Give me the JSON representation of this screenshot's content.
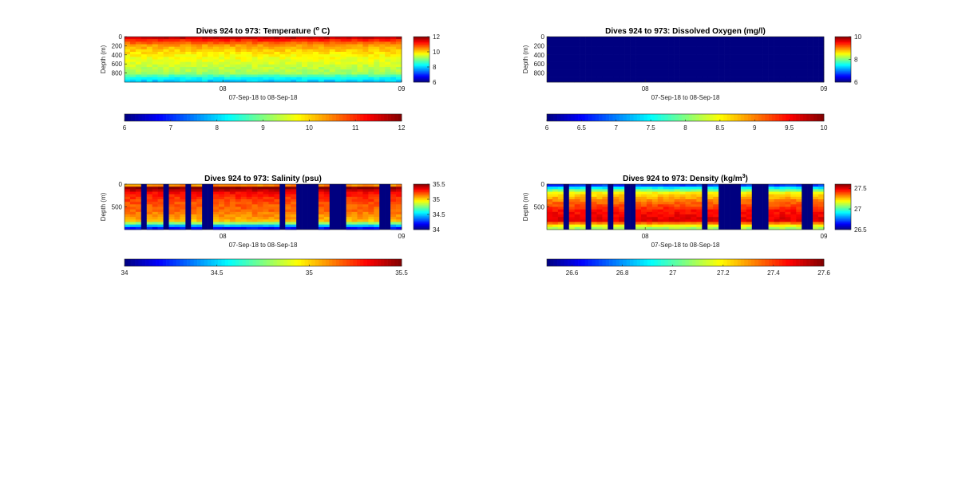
{
  "colormap": "jet",
  "chart_data": [
    {
      "type": "heatmap",
      "title_prefix": "Dives 924 to 973: Temperature (",
      "title_super": "o",
      "title_suffix": " C)",
      "xlabel": "07-Sep-18 to 08-Sep-18",
      "ylabel": "Depth (m)",
      "x_ticks": [
        "08",
        "09"
      ],
      "y_ticks": [
        "0",
        "200",
        "400",
        "600",
        "800"
      ],
      "y_tick_values": [
        0,
        200,
        400,
        600,
        800
      ],
      "ylim": [
        0,
        1000
      ],
      "n_dives": 50,
      "clim": [
        6,
        12
      ],
      "side_colorbar_ticks": [
        "12",
        "10",
        "8",
        "6"
      ],
      "side_colorbar_values": [
        12,
        10,
        8,
        6
      ],
      "bottom_colorbar_ticks": [
        "6",
        "7",
        "8",
        "9",
        "10",
        "11",
        "12"
      ],
      "bottom_colorbar_values": [
        6,
        7,
        8,
        9,
        10,
        11,
        12
      ],
      "profile": {
        "depth_m": [
          0,
          100,
          200,
          400,
          600,
          800,
          950
        ],
        "value": [
          11.8,
          10.9,
          10.3,
          9.8,
          9.5,
          9.2,
          8.0
        ]
      },
      "no_data_dives": []
    },
    {
      "type": "heatmap",
      "title_prefix": "Dives 924 to 973: Dissolved Oxygen (mg/l)",
      "title_super": "",
      "title_suffix": "",
      "xlabel": "07-Sep-18 to 08-Sep-18",
      "ylabel": "Depth (m)",
      "x_ticks": [
        "08",
        "09"
      ],
      "y_ticks": [
        "0",
        "200",
        "400",
        "600",
        "800"
      ],
      "y_tick_values": [
        0,
        200,
        400,
        600,
        800
      ],
      "ylim": [
        0,
        1000
      ],
      "n_dives": 50,
      "clim": [
        6,
        10
      ],
      "side_colorbar_ticks": [
        "10",
        "8",
        "6"
      ],
      "side_colorbar_values": [
        10,
        8,
        6
      ],
      "bottom_colorbar_ticks": [
        "6",
        "6.5",
        "7",
        "7.5",
        "8",
        "8.5",
        "9",
        "9.5",
        "10"
      ],
      "bottom_colorbar_values": [
        6,
        6.5,
        7,
        7.5,
        8,
        8.5,
        9,
        9.5,
        10
      ],
      "profile": {
        "depth_m": [
          0,
          1000
        ],
        "value": [
          6,
          6
        ]
      },
      "no_data_dives": []
    },
    {
      "type": "heatmap",
      "title_prefix": "Dives 924 to 973: Salinity (psu)",
      "title_super": "",
      "title_suffix": "",
      "xlabel": "07-Sep-18 to 08-Sep-18",
      "ylabel": "Depth (m)",
      "x_ticks": [
        "08",
        "09"
      ],
      "y_ticks": [
        "0",
        "500"
      ],
      "y_tick_values": [
        0,
        500
      ],
      "ylim": [
        0,
        1000
      ],
      "n_dives": 50,
      "clim": [
        34,
        35.5
      ],
      "side_colorbar_ticks": [
        "35.5",
        "35",
        "34.5",
        "34"
      ],
      "side_colorbar_values": [
        35.5,
        35,
        34.5,
        34
      ],
      "bottom_colorbar_ticks": [
        "34",
        "34.5",
        "35",
        "35.5"
      ],
      "bottom_colorbar_values": [
        34,
        34.5,
        35,
        35.5
      ],
      "profile": {
        "depth_m": [
          0,
          80,
          200,
          400,
          600,
          800,
          900,
          950
        ],
        "value": [
          34.9,
          35.5,
          35.3,
          35.2,
          35.15,
          35.05,
          34.6,
          34.2
        ]
      },
      "no_data_dives": [
        3,
        7,
        11,
        14,
        15,
        28,
        31,
        32,
        33,
        34,
        37,
        38,
        39,
        46,
        47
      ]
    },
    {
      "type": "heatmap",
      "title_prefix": "Dives 924 to 973: Density (kg/m",
      "title_super": "3",
      "title_suffix": ")",
      "xlabel": "07-Sep-18 to 08-Sep-18",
      "ylabel": "Depth (m)",
      "x_ticks": [
        "08",
        "09"
      ],
      "y_ticks": [
        "0",
        "500"
      ],
      "y_tick_values": [
        0,
        500
      ],
      "ylim": [
        0,
        1000
      ],
      "n_dives": 50,
      "clim": [
        26.5,
        27.6
      ],
      "side_colorbar_ticks": [
        "27.5",
        "27",
        "26.5"
      ],
      "side_colorbar_values": [
        27.5,
        27,
        26.5
      ],
      "bottom_colorbar_ticks": [
        "26.6",
        "26.8",
        "27",
        "27.2",
        "27.4",
        "27.6"
      ],
      "bottom_colorbar_values": [
        26.6,
        26.8,
        27,
        27.2,
        27.4,
        27.6
      ],
      "profile": {
        "depth_m": [
          0,
          80,
          200,
          400,
          600,
          800,
          950
        ],
        "value": [
          26.6,
          26.9,
          27.2,
          27.35,
          27.45,
          27.5,
          27.1
        ]
      },
      "no_data_dives": [
        3,
        7,
        11,
        14,
        15,
        28,
        31,
        32,
        33,
        34,
        37,
        38,
        39,
        46,
        47
      ]
    }
  ]
}
